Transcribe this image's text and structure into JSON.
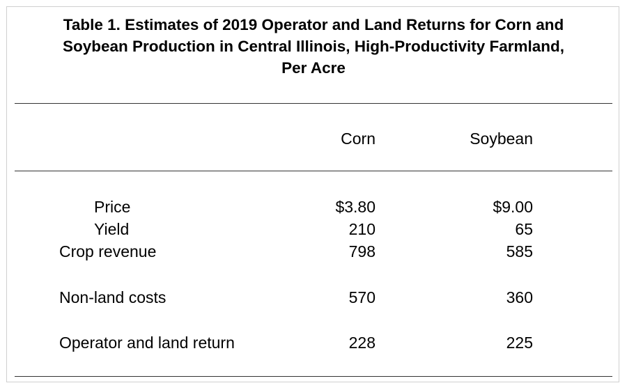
{
  "title": {
    "line1": "Table 1. Estimates of 2019 Operator and Land Returns for Corn and",
    "line2": "Soybean Production in Central Illinois, High-Productivity Farmland,",
    "line3": "Per Acre"
  },
  "columns": [
    "Corn",
    "Soybean"
  ],
  "rows": [
    {
      "label": "Price",
      "corn": "$3.80",
      "soybean": "$9.00"
    },
    {
      "label": "Yield",
      "corn": "210",
      "soybean": "65"
    },
    {
      "label": "Crop revenue",
      "corn": "798",
      "soybean": "585"
    },
    {
      "label": "Non-land costs",
      "corn": "570",
      "soybean": "360"
    },
    {
      "label": "Operator and land return",
      "corn": "228",
      "soybean": "225"
    }
  ]
}
